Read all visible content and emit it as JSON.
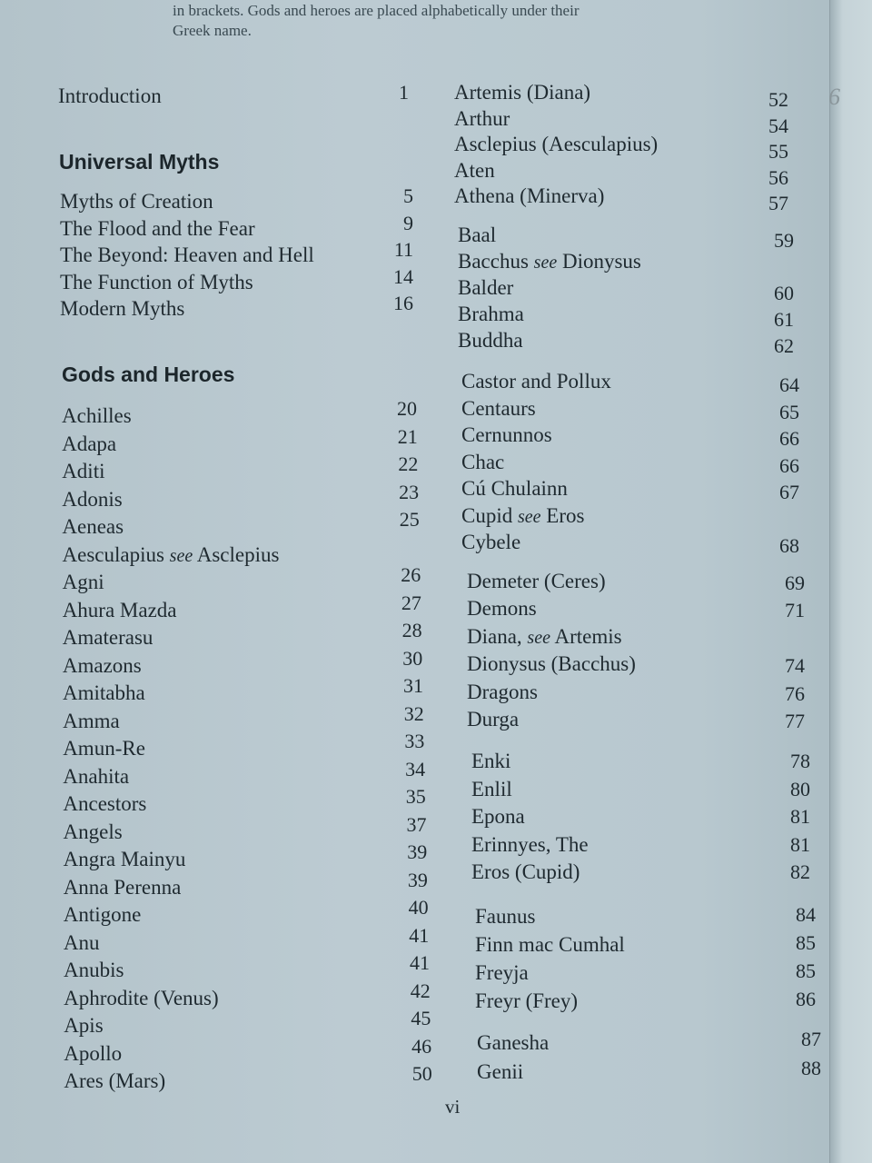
{
  "lead_text": [
    "in brackets. Gods and heroes are placed alphabetically under their",
    "Greek name."
  ],
  "introduction": {
    "label": "Introduction",
    "page": "1"
  },
  "universal_myths": {
    "heading": "Universal Myths",
    "items": [
      {
        "label": "Myths of Creation",
        "page": "5"
      },
      {
        "label": "The Flood and the Fear",
        "page": "9"
      },
      {
        "label": "The Beyond: Heaven and Hell",
        "page": "11"
      },
      {
        "label": "The Function of Myths",
        "page": "14"
      },
      {
        "label": "Modern Myths",
        "page": "16"
      }
    ]
  },
  "gods_and_heroes": {
    "heading": "Gods and Heroes",
    "left_column": [
      {
        "label": "Achilles",
        "page": "20"
      },
      {
        "label": "Adapa",
        "page": "21"
      },
      {
        "label": "Aditi",
        "page": "22"
      },
      {
        "label": "Adonis",
        "page": "23"
      },
      {
        "label": "Aeneas",
        "page": "25"
      },
      {
        "label": "Aesculapius",
        "see": "see",
        "target": "Asclepius",
        "page": ""
      },
      {
        "label": "Agni",
        "page": "26"
      },
      {
        "label": "Ahura Mazda",
        "page": "27"
      },
      {
        "label": "Amaterasu",
        "page": "28"
      },
      {
        "label": "Amazons",
        "page": "30"
      },
      {
        "label": "Amitabha",
        "page": "31"
      },
      {
        "label": "Amma",
        "page": "32"
      },
      {
        "label": "Amun-Re",
        "page": "33"
      },
      {
        "label": "Anahita",
        "page": "34"
      },
      {
        "label": "Ancestors",
        "page": "35"
      },
      {
        "label": "Angels",
        "page": "37"
      },
      {
        "label": "Angra Mainyu",
        "page": "39"
      },
      {
        "label": "Anna Perenna",
        "page": "39"
      },
      {
        "label": "Antigone",
        "page": "40"
      },
      {
        "label": "Anu",
        "page": "41"
      },
      {
        "label": "Anubis",
        "page": "41"
      },
      {
        "label": "Aphrodite (Venus)",
        "page": "42"
      },
      {
        "label": "Apis",
        "page": "45"
      },
      {
        "label": "Apollo",
        "page": "46"
      },
      {
        "label": "Ares (Mars)",
        "page": "50"
      }
    ],
    "right_groups": [
      [
        {
          "label": "Artemis (Diana)",
          "page": "52"
        },
        {
          "label": "Arthur",
          "page": "54"
        },
        {
          "label": "Asclepius (Aesculapius)",
          "page": "55"
        },
        {
          "label": "Aten",
          "page": "56"
        },
        {
          "label": "Athena (Minerva)",
          "page": "57"
        }
      ],
      [
        {
          "label": "Baal",
          "page": "59"
        },
        {
          "label": "Bacchus",
          "see": "see",
          "target": "Dionysus",
          "page": ""
        },
        {
          "label": "Balder",
          "page": "60"
        },
        {
          "label": "Brahma",
          "page": "61"
        },
        {
          "label": "Buddha",
          "page": "62"
        }
      ],
      [
        {
          "label": "Castor and Pollux",
          "page": "64"
        },
        {
          "label": "Centaurs",
          "page": "65"
        },
        {
          "label": "Cernunnos",
          "page": "66"
        },
        {
          "label": "Chac",
          "page": "66"
        },
        {
          "label": "Cú Chulainn",
          "page": "67"
        },
        {
          "label": "Cupid",
          "see": "see",
          "target": "Eros",
          "page": ""
        },
        {
          "label": "Cybele",
          "page": "68"
        }
      ],
      [
        {
          "label": "Demeter (Ceres)",
          "page": "69"
        },
        {
          "label": "Demons",
          "page": "71"
        },
        {
          "label": "Diana,",
          "see": "see",
          "target": "Artemis",
          "page": ""
        },
        {
          "label": "Dionysus (Bacchus)",
          "page": "74"
        },
        {
          "label": "Dragons",
          "page": "76"
        },
        {
          "label": "Durga",
          "page": "77"
        }
      ],
      [
        {
          "label": "Enki",
          "page": "78"
        },
        {
          "label": "Enlil",
          "page": "80"
        },
        {
          "label": "Epona",
          "page": "81"
        },
        {
          "label": "Erinnyes, The",
          "page": "81"
        },
        {
          "label": "Eros (Cupid)",
          "page": "82"
        }
      ],
      [
        {
          "label": "Faunus",
          "page": "84"
        },
        {
          "label": "Finn mac Cumhal",
          "page": "85"
        },
        {
          "label": "Freyja",
          "page": "85"
        },
        {
          "label": "Freyr (Frey)",
          "page": "86"
        }
      ],
      [
        {
          "label": "Ganesha",
          "page": "87"
        },
        {
          "label": "Genii",
          "page": "88"
        }
      ]
    ]
  },
  "folio": "vi",
  "pencil_mark": "6"
}
